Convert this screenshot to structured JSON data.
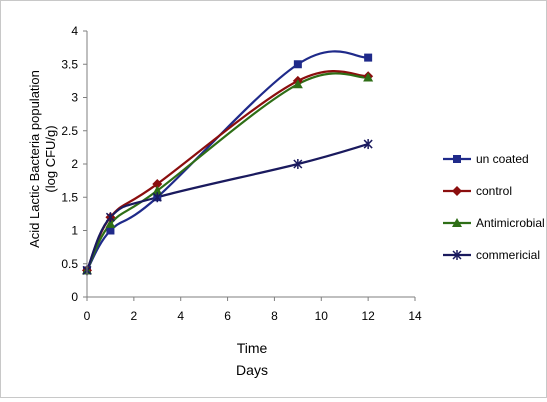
{
  "chart_data": {
    "type": "line",
    "title": "",
    "xlabel_line1": "Time",
    "xlabel_line2": "Days",
    "ylabel_line1": "Acid Lactic  Bacteria population",
    "ylabel_line2": "(log CFU/g)",
    "xlim": [
      0,
      14
    ],
    "ylim": [
      0,
      4
    ],
    "xticks": [
      "0",
      "2",
      "4",
      "6",
      "8",
      "10",
      "12",
      "14"
    ],
    "yticks": [
      "0",
      "0.5",
      "1",
      "1.5",
      "2",
      "2.5",
      "3",
      "3.5",
      "4"
    ],
    "grid": false,
    "legend_position": "right",
    "x": [
      0,
      1,
      3,
      9,
      12
    ],
    "series": [
      {
        "name": "un coated",
        "color": "#1f2a8a",
        "marker": "square",
        "values": [
          0.4,
          1.0,
          1.5,
          3.5,
          3.6
        ]
      },
      {
        "name": "control",
        "color": "#8b0e0e",
        "marker": "diamond",
        "values": [
          0.4,
          1.2,
          1.7,
          3.25,
          3.32
        ]
      },
      {
        "name": "Antimicrobial",
        "color": "#2e6e16",
        "marker": "triangle",
        "values": [
          0.4,
          1.1,
          1.6,
          3.2,
          3.3
        ]
      },
      {
        "name": "commericial",
        "color": "#1a1a5e",
        "marker": "star",
        "values": [
          0.4,
          1.2,
          1.5,
          2.0,
          2.3
        ]
      }
    ]
  }
}
